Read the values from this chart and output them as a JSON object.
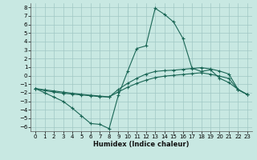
{
  "xlabel": "Humidex (Indice chaleur)",
  "xlim": [
    -0.5,
    23.5
  ],
  "ylim": [
    -6.5,
    8.5
  ],
  "xticks": [
    0,
    1,
    2,
    3,
    4,
    5,
    6,
    7,
    8,
    9,
    10,
    11,
    12,
    13,
    14,
    15,
    16,
    17,
    18,
    19,
    20,
    21,
    22,
    23
  ],
  "yticks": [
    -6,
    -5,
    -4,
    -3,
    -2,
    -1,
    0,
    1,
    2,
    3,
    4,
    5,
    6,
    7,
    8
  ],
  "background_color": "#c8e8e2",
  "grid_color": "#a0c8c4",
  "line_color": "#1a6655",
  "line1_x": [
    0,
    1,
    2,
    3,
    4,
    5,
    6,
    7,
    8,
    9,
    10,
    11,
    12,
    13,
    14,
    15,
    16,
    17,
    18,
    19,
    20,
    21,
    22,
    23
  ],
  "line1_y": [
    -1.5,
    -2.0,
    -2.5,
    -3.0,
    -3.8,
    -4.7,
    -5.6,
    -5.7,
    -6.2,
    -2.3,
    0.5,
    3.2,
    3.5,
    7.9,
    7.2,
    6.3,
    4.4,
    0.9,
    0.5,
    0.7,
    -0.3,
    -0.8,
    -1.6,
    -2.2
  ],
  "line2_x": [
    0,
    1,
    2,
    3,
    4,
    5,
    6,
    7,
    8,
    9,
    10,
    11,
    12,
    13,
    14,
    15,
    16,
    17,
    18,
    19,
    20,
    21,
    22,
    23
  ],
  "line2_y": [
    -1.5,
    -1.75,
    -1.9,
    -2.05,
    -2.15,
    -2.25,
    -2.35,
    -2.45,
    -2.5,
    -1.6,
    -0.9,
    -0.3,
    0.2,
    0.5,
    0.6,
    0.65,
    0.75,
    0.85,
    0.95,
    0.8,
    0.55,
    0.2,
    -1.6,
    -2.2
  ],
  "line3_x": [
    0,
    1,
    2,
    3,
    4,
    5,
    6,
    7,
    8,
    9,
    10,
    11,
    12,
    13,
    14,
    15,
    16,
    17,
    18,
    19,
    20,
    21,
    22,
    23
  ],
  "line3_y": [
    -1.5,
    -1.65,
    -1.78,
    -1.92,
    -2.05,
    -2.18,
    -2.28,
    -2.38,
    -2.48,
    -1.9,
    -1.35,
    -0.9,
    -0.52,
    -0.22,
    -0.05,
    0.05,
    0.15,
    0.25,
    0.35,
    0.18,
    -0.05,
    -0.32,
    -1.65,
    -2.2
  ]
}
